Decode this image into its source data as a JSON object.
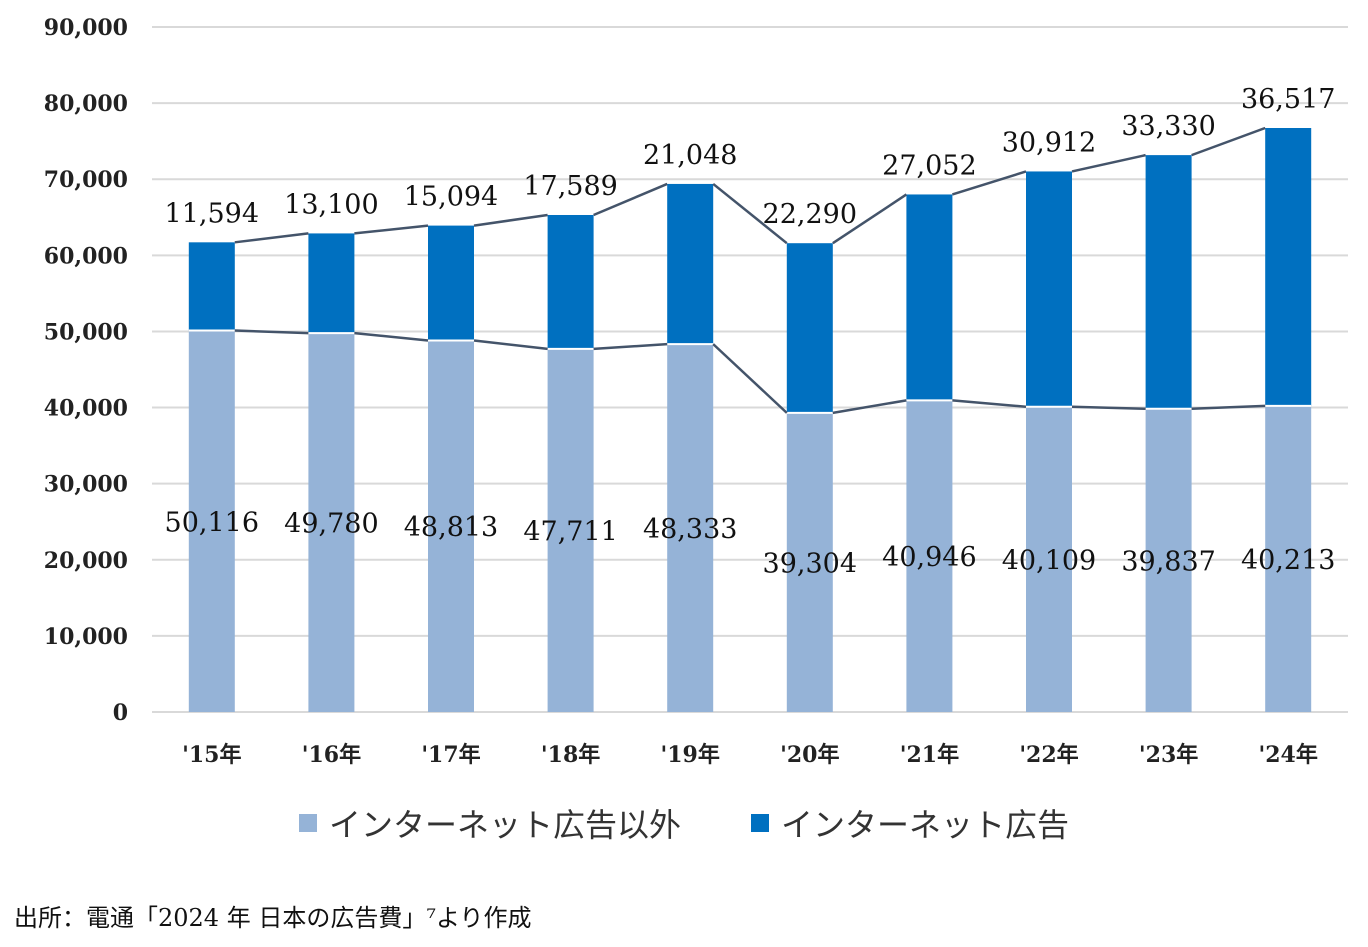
{
  "chart_data": {
    "type": "bar",
    "stacked": true,
    "categories": [
      "'15年",
      "'16年",
      "'17年",
      "'18年",
      "'19年",
      "'20年",
      "'21年",
      "'22年",
      "'23年",
      "'24年"
    ],
    "series": [
      {
        "name": "インターネット広告以外",
        "color": "#95b3d7",
        "values": [
          50116,
          49780,
          48813,
          47711,
          48333,
          39304,
          40946,
          40109,
          39837,
          40213
        ]
      },
      {
        "name": "インターネット広告",
        "color": "#0070c0",
        "values": [
          11594,
          13100,
          15094,
          17589,
          21048,
          22290,
          27052,
          30912,
          33330,
          36517
        ]
      }
    ],
    "ylim": [
      0,
      90000
    ],
    "yticks": [
      0,
      10000,
      20000,
      30000,
      40000,
      50000,
      60000,
      70000,
      80000,
      90000
    ],
    "grid": true,
    "series_lines": true,
    "line_color": "#44546a",
    "legend_position": "bottom",
    "data_labels": true
  },
  "source": "出所：電通「2024 年  日本の広告費」⁷より作成"
}
